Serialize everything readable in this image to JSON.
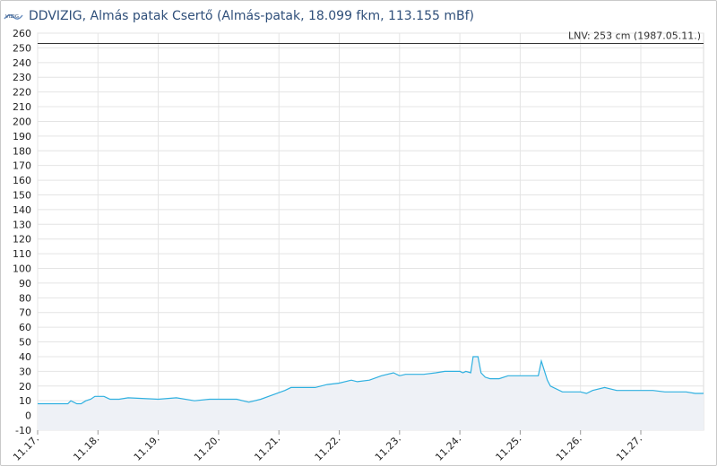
{
  "header": {
    "logo_text": "VIZIG",
    "title": "DDVIZIG, Almás patak Csertő (Almás-patak, 18.099 fkm, 113.155 mBf)"
  },
  "chart_data": {
    "type": "area",
    "title": "DDVIZIG, Almás patak Csertő (Almás-patak, 18.099 fkm, 113.155 mBf)",
    "xlabel": "",
    "ylabel": "",
    "ylim": [
      -10,
      260
    ],
    "yticks": [
      -10,
      0,
      10,
      20,
      30,
      40,
      50,
      60,
      70,
      80,
      90,
      100,
      110,
      120,
      130,
      140,
      150,
      160,
      170,
      180,
      190,
      200,
      210,
      220,
      230,
      240,
      250,
      260
    ],
    "xlim": [
      0,
      11.04
    ],
    "xtick_labels": [
      "11.17.",
      "11.18.",
      "11.19.",
      "11.20.",
      "11.21.",
      "11.22.",
      "11.23.",
      "11.24.",
      "11.25.",
      "11.26.",
      "11.27."
    ],
    "xtick_positions": [
      0,
      1,
      2,
      3,
      4,
      5,
      6,
      7,
      8,
      9,
      10
    ],
    "grid": true,
    "reference_line": {
      "label": "LNV: 253 cm (1987.05.11.)",
      "value": 253
    },
    "colors": {
      "line": "#2fb0e0",
      "fill": "#eef1f6",
      "reference": "#333333",
      "grid": "#e4e4e4"
    },
    "series": [
      {
        "x": [
          0,
          0.5,
          0.55,
          0.65,
          0.72,
          0.8,
          0.88,
          0.95,
          1.1,
          1.15,
          1.2,
          1.35,
          1.5,
          2.0,
          2.3,
          2.6,
          2.85,
          3.0,
          3.1,
          3.3,
          3.5,
          3.7,
          3.9,
          4.1,
          4.2,
          4.4,
          4.6,
          4.8,
          5.0,
          5.2,
          5.3,
          5.5,
          5.7,
          5.9,
          6.0,
          6.1,
          6.2,
          6.4,
          6.6,
          6.75,
          6.9,
          7.0,
          7.05,
          7.1,
          7.18,
          7.22,
          7.3,
          7.35,
          7.42,
          7.5,
          7.65,
          7.8,
          8.0,
          8.2,
          8.25,
          8.3,
          8.35,
          8.45,
          8.5,
          8.7,
          8.9,
          9.0,
          9.1,
          9.2,
          9.4,
          9.6,
          9.8,
          10.0,
          10.2,
          10.4,
          10.5,
          10.65,
          10.75,
          10.9,
          11.04
        ],
        "y": [
          8,
          8,
          10,
          8,
          8,
          10,
          11,
          13,
          13,
          12,
          11,
          11,
          12,
          11,
          12,
          10,
          11,
          11,
          11,
          11,
          9,
          11,
          14,
          17,
          19,
          19,
          19,
          21,
          22,
          24,
          23,
          24,
          27,
          29,
          27,
          28,
          28,
          28,
          29,
          30,
          30,
          30,
          29,
          30,
          29,
          40,
          40,
          29,
          26,
          25,
          25,
          27,
          27,
          27,
          27,
          27,
          37,
          24,
          20,
          16,
          16,
          16,
          15,
          17,
          19,
          17,
          17,
          17,
          17,
          16,
          16,
          16,
          16,
          15,
          15
        ]
      }
    ]
  }
}
